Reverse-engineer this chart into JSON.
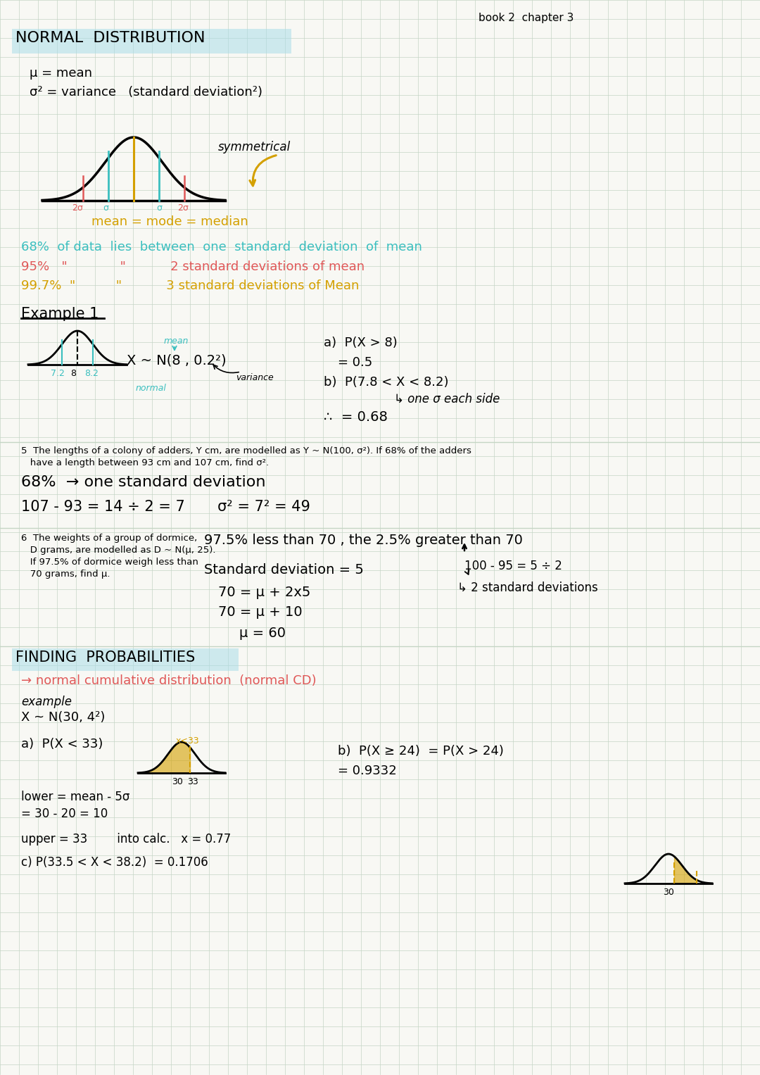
{
  "bg_color": "#f8f8f4",
  "grid_color": "#c5d5c5",
  "title_header": "book 2  chapter 3",
  "section1_title": "NORMAL  DISTRIBUTION",
  "mu_line": "μ = mean",
  "sigma_line": "σ² = variance   (standard deviation²)",
  "symmetrical": "symmetrical",
  "mean_mode_median": "mean = mode = median",
  "stat1_teal": "68%  of data  lies  between  one  standard  deviation  of  mean",
  "stat2_red": "95%   \"             \"           2 standard deviations of mean",
  "stat3_yellow": "99.7%  \"          \"           3 standard deviations of Mean",
  "example1_title": "Example 1",
  "ex1_dist": "X ~ N(8 , 0.2²)",
  "ex1_a_label": "a)  P(X > 8)",
  "ex1_a_ans": "= 0.5",
  "ex1_b_label": "b)  P(7.8 < X < 8.2)",
  "ex1_b_note": "↳ one σ each side",
  "ex1_b_ans": "∴  = 0.68",
  "ex1_mean_label": "mean",
  "ex1_normal_label": "normal",
  "ex1_variance_label": "variance",
  "q5_text_line1": "5  The lengths of a colony of adders, Y cm, are modelled as Y ~ N(100, σ²). If 68% of the adders",
  "q5_text_line2": "   have a length between 93 cm and 107 cm, find σ².",
  "q5_line1": "68%  → one standard deviation",
  "q5_line2": "107 - 93 = 14 ÷ 2 = 7       σ² = 7² = 49",
  "q6_text_line1": "6  The weights of a group of dormice,",
  "q6_text_line2": "   D grams, are modelled as D ~ N(μ, 25).",
  "q6_text_line3": "   If 97.5% of dormice weigh less than",
  "q6_text_line4": "   70 grams, find μ.",
  "q6_line1": "97.5% less than 70 , the 2.5% greater than 70",
  "q6_line2": "Standard deviation = 5",
  "q6_line3": "70 = μ + 2x5",
  "q6_line4": "70 = μ + 10",
  "q6_line5": "μ = 60",
  "q6_note1": "100 - 95 = 5 ÷ 2",
  "q6_note2": "↳ 2 standard deviations",
  "section2_title": "FINDING  PROBABILITIES",
  "section2_sub": "→ normal cumulative distribution  (normal CD)",
  "ex2_label": "example",
  "ex2_dist": "X ~ N(30, 4²)",
  "ex2_a": "a)  P(X < 33)",
  "ex2_a_lower1": "lower = mean - 5σ",
  "ex2_a_lower2": "= 30 - 20 = 10",
  "ex2_a_upper": "upper = 33        into calc.   x = 0.77",
  "ex2_b": "b)  P(X ≥ 24)  = P(X > 24)",
  "ex2_b_ans": "= 0.9332",
  "ex2_c": "c) P(33.5 < X < 38.2)  = 0.1706",
  "ex2_x_less33": "x<33",
  "label_30_33": "30  33",
  "label_30b": "30"
}
